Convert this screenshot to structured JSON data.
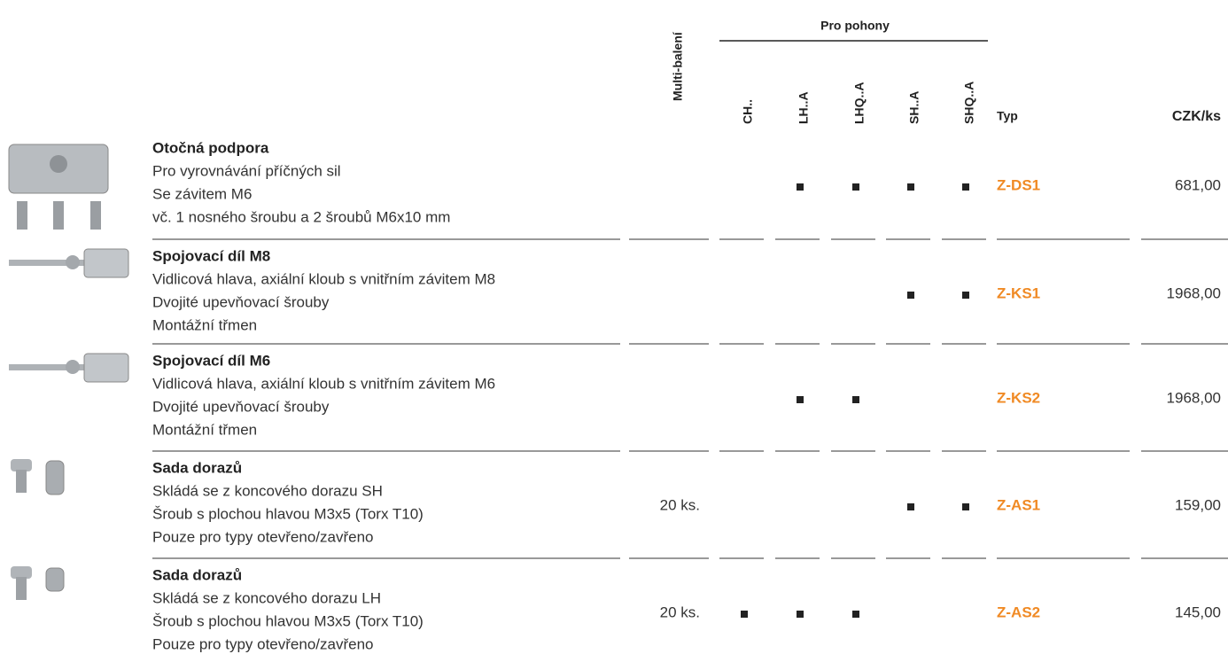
{
  "header": {
    "group_label": "Pro pohony",
    "multi": "Multi-balení",
    "columns": [
      "CH..",
      "LH..A",
      "LHQ..A",
      "SH..A",
      "SHQ..A"
    ],
    "typ": "Typ",
    "price": "CZK/ks"
  },
  "rows": [
    {
      "title": "Otočná podpora",
      "lines": [
        "Pro vyrovnávání příčných sil",
        "Se závitem M6",
        "vč. 1 nosného šroubu a 2 šroubů M6x10 mm"
      ],
      "multi": null,
      "marks": [
        false,
        true,
        true,
        true,
        true
      ],
      "typ": "Z-DS1",
      "price": "681,00"
    },
    {
      "title": "Spojovací díl M8",
      "lines": [
        "Vidlicová hlava, axiální kloub s vnitřním závitem M8",
        "Dvojité upevňovací šrouby",
        "Montážní třmen"
      ],
      "multi": null,
      "marks": [
        false,
        false,
        false,
        true,
        true
      ],
      "typ": "Z-KS1",
      "price": "1968,00"
    },
    {
      "title": "Spojovací díl M6",
      "lines": [
        "Vidlicová hlava, axiální kloub s vnitřním závitem M6",
        "Dvojité upevňovací šrouby",
        "Montážní třmen"
      ],
      "multi": null,
      "marks": [
        false,
        true,
        true,
        false,
        false
      ],
      "typ": "Z-KS2",
      "price": "1968,00"
    },
    {
      "title": "Sada dorazů",
      "lines": [
        "Skládá se z koncového dorazu SH",
        "Šroub s plochou hlavou M3x5 (Torx T10)",
        "Pouze pro typy otevřeno/zavřeno"
      ],
      "multi": "20 ks.",
      "marks": [
        false,
        false,
        false,
        true,
        true
      ],
      "typ": "Z-AS1",
      "price": "159,00"
    },
    {
      "title": "Sada dorazů",
      "lines": [
        "Skládá se z koncového dorazu LH",
        "Šroub s plochou hlavou M3x5 (Torx T10)",
        "Pouze pro typy otevřeno/zavřeno"
      ],
      "multi": "20 ks.",
      "marks": [
        true,
        true,
        true,
        false,
        false
      ],
      "typ": "Z-AS2",
      "price": "145,00"
    }
  ]
}
